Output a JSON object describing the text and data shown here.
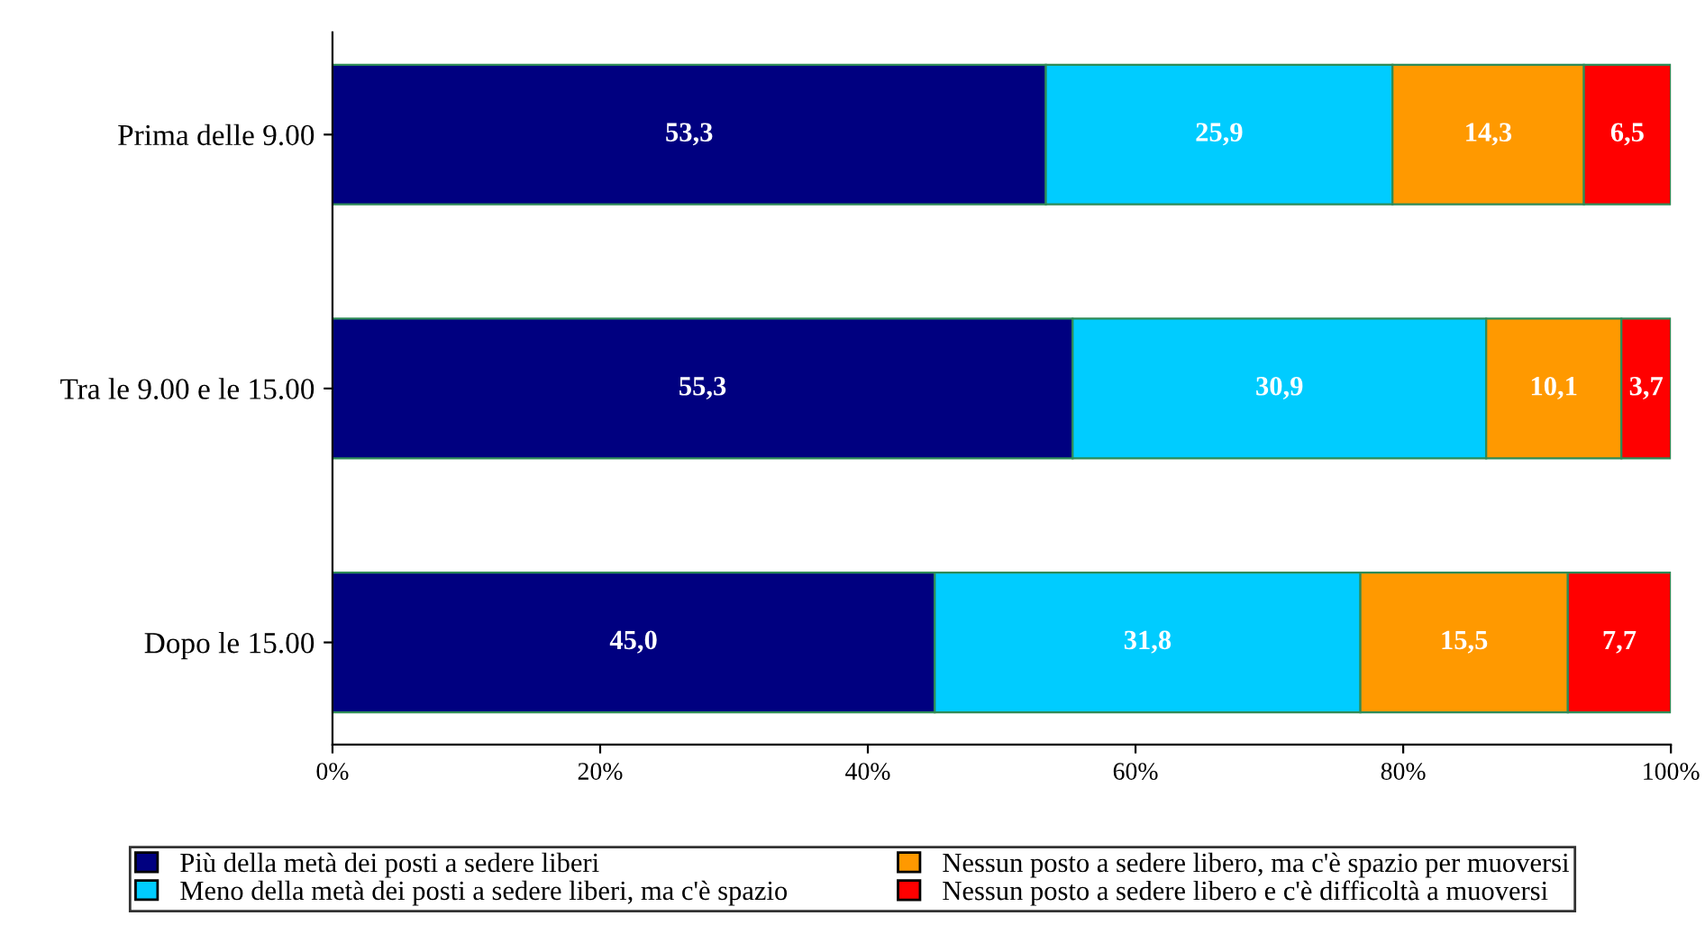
{
  "chart_data": {
    "type": "bar",
    "orientation": "horizontal",
    "stacked": true,
    "categories": [
      "Prima delle 9.00",
      "Tra le 9.00 e le 15.00",
      "Dopo le 15.00"
    ],
    "series": [
      {
        "name": "Più della metà dei posti a sedere liberi",
        "color": "#000080",
        "values": [
          53.3,
          55.3,
          45.0
        ],
        "value_labels": [
          "53,3",
          "55,3",
          "45,0"
        ]
      },
      {
        "name": "Meno della metà dei posti a sedere liberi, ma c'è spazio",
        "color": "#00ccff",
        "values": [
          25.9,
          30.9,
          31.8
        ],
        "value_labels": [
          "25,9",
          "30,9",
          "31,8"
        ]
      },
      {
        "name": "Nessun posto a sedere libero, ma c'è spazio per muoversi",
        "color": "#ff9900",
        "values": [
          14.3,
          10.1,
          15.5
        ],
        "value_labels": [
          "14,3",
          "10,1",
          "15,5"
        ]
      },
      {
        "name": "Nessun posto a sedere libero e c'è difficoltà a muoversi",
        "color": "#ff0000",
        "values": [
          6.5,
          3.7,
          7.7
        ],
        "value_labels": [
          "6,5",
          "3,7",
          "7,7"
        ]
      }
    ],
    "xlim": [
      0,
      100
    ],
    "xticks": [
      {
        "value": 0,
        "label": "0%"
      },
      {
        "value": 20,
        "label": "20%"
      },
      {
        "value": 40,
        "label": "40%"
      },
      {
        "value": 60,
        "label": "60%"
      },
      {
        "value": 80,
        "label": "80%"
      },
      {
        "value": 100,
        "label": "100%"
      }
    ],
    "grid": false,
    "legend": "bottom"
  }
}
